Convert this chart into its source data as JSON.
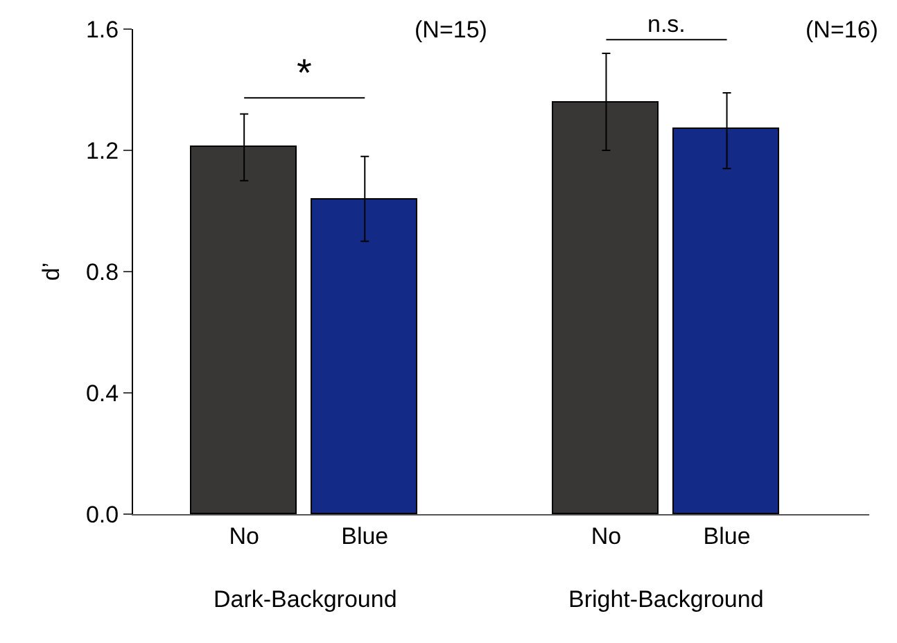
{
  "chart_data": {
    "type": "bar",
    "ylabel": "d’",
    "categories": [
      "No",
      "Blue",
      null,
      "No",
      "Blue"
    ],
    "values": [
      1.21,
      1.04,
      null,
      1.36,
      1.27
    ],
    "colors": [
      "#383735",
      "#132a87",
      "#383735",
      "#383735",
      "#132a87"
    ],
    "errors": [
      [
        1.1,
        1.32
      ],
      [
        0.9,
        1.18
      ],
      null,
      [
        1.2,
        1.52
      ],
      [
        1.14,
        1.39
      ]
    ],
    "ylim": [
      0,
      1.6
    ],
    "yticks": [
      {
        "value": 0,
        "label": "0.0"
      },
      0.4,
      0.8,
      1.2,
      1.6
    ],
    "annotations": [
      "*",
      "n.s.",
      "(N=15)",
      "(N=16)",
      "Dark-Background",
      "Bright-Background"
    ],
    "legend": false
  }
}
